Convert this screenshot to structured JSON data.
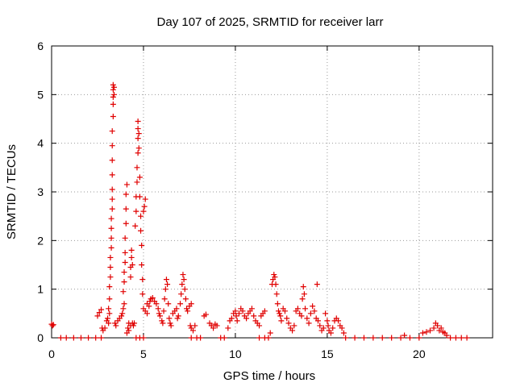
{
  "chart_data": {
    "type": "scatter",
    "title": "Day 107 of 2025, SRMTID for receiver larr",
    "xlabel": "GPS time / hours",
    "ylabel": "SRMTID / TECUs",
    "xlim": [
      0,
      24
    ],
    "ylim": [
      0,
      6
    ],
    "x_ticks": [
      0,
      5,
      10,
      15,
      20
    ],
    "y_ticks": [
      0,
      1,
      2,
      3,
      4,
      5,
      6
    ],
    "grid": true,
    "marker": "plus",
    "color": "#e00000",
    "series": [
      {
        "name": "SRMTID",
        "points": [
          [
            0.0,
            0.28
          ],
          [
            0.05,
            0.25
          ],
          [
            0.1,
            0.27
          ],
          [
            0.5,
            0.0
          ],
          [
            0.8,
            0.0
          ],
          [
            1.2,
            0.0
          ],
          [
            1.6,
            0.0
          ],
          [
            2.0,
            0.0
          ],
          [
            2.4,
            0.0
          ],
          [
            2.7,
            0.0
          ],
          [
            2.5,
            0.45
          ],
          [
            2.6,
            0.52
          ],
          [
            2.7,
            0.58
          ],
          [
            2.75,
            0.2
          ],
          [
            2.8,
            0.15
          ],
          [
            2.9,
            0.2
          ],
          [
            3.0,
            0.35
          ],
          [
            3.05,
            0.4
          ],
          [
            3.1,
            0.3
          ],
          [
            3.15,
            0.5
          ],
          [
            3.1,
            0.6
          ],
          [
            3.15,
            0.8
          ],
          [
            3.15,
            1.05
          ],
          [
            3.2,
            1.25
          ],
          [
            3.2,
            1.45
          ],
          [
            3.2,
            1.65
          ],
          [
            3.25,
            1.85
          ],
          [
            3.25,
            2.05
          ],
          [
            3.25,
            2.25
          ],
          [
            3.25,
            2.45
          ],
          [
            3.3,
            2.65
          ],
          [
            3.3,
            2.85
          ],
          [
            3.3,
            3.05
          ],
          [
            3.3,
            3.35
          ],
          [
            3.3,
            3.65
          ],
          [
            3.3,
            3.95
          ],
          [
            3.3,
            4.25
          ],
          [
            3.35,
            4.55
          ],
          [
            3.35,
            4.8
          ],
          [
            3.35,
            4.95
          ],
          [
            3.35,
            5.1
          ],
          [
            3.35,
            5.2
          ],
          [
            3.4,
            5.15
          ],
          [
            3.4,
            5.0
          ],
          [
            3.45,
            0.3
          ],
          [
            3.5,
            0.25
          ],
          [
            3.6,
            0.35
          ],
          [
            3.7,
            0.4
          ],
          [
            3.8,
            0.45
          ],
          [
            3.85,
            0.5
          ],
          [
            3.9,
            0.6
          ],
          [
            3.95,
            0.7
          ],
          [
            3.9,
            0.95
          ],
          [
            3.95,
            1.15
          ],
          [
            3.95,
            1.35
          ],
          [
            4.0,
            1.55
          ],
          [
            4.0,
            1.75
          ],
          [
            4.0,
            2.05
          ],
          [
            4.05,
            2.35
          ],
          [
            4.05,
            2.65
          ],
          [
            4.05,
            2.95
          ],
          [
            4.1,
            3.15
          ],
          [
            4.1,
            0.1
          ],
          [
            4.15,
            0.2
          ],
          [
            4.2,
            0.3
          ],
          [
            4.2,
            0.15
          ],
          [
            4.3,
            0.25
          ],
          [
            4.3,
            1.25
          ],
          [
            4.3,
            1.45
          ],
          [
            4.35,
            1.65
          ],
          [
            4.35,
            1.8
          ],
          [
            4.4,
            1.5
          ],
          [
            4.4,
            0.3
          ],
          [
            4.45,
            0.25
          ],
          [
            4.5,
            0.3
          ],
          [
            4.55,
            2.3
          ],
          [
            4.6,
            2.6
          ],
          [
            4.6,
            2.9
          ],
          [
            4.65,
            3.2
          ],
          [
            4.65,
            3.5
          ],
          [
            4.7,
            3.8
          ],
          [
            4.7,
            4.1
          ],
          [
            4.7,
            4.3
          ],
          [
            4.7,
            4.45
          ],
          [
            4.75,
            4.2
          ],
          [
            4.75,
            3.9
          ],
          [
            4.8,
            3.3
          ],
          [
            4.8,
            2.9
          ],
          [
            4.85,
            2.5
          ],
          [
            4.85,
            2.2
          ],
          [
            4.9,
            1.9
          ],
          [
            4.9,
            1.5
          ],
          [
            4.95,
            1.2
          ],
          [
            4.95,
            0.9
          ],
          [
            5.0,
            0.6
          ],
          [
            5.0,
            2.6
          ],
          [
            5.05,
            2.7
          ],
          [
            5.1,
            2.85
          ],
          [
            5.1,
            0.55
          ],
          [
            5.2,
            0.5
          ],
          [
            4.6,
            0.0
          ],
          [
            4.8,
            0.0
          ],
          [
            5.0,
            0.0
          ],
          [
            5.2,
            0.7
          ],
          [
            5.3,
            0.65
          ],
          [
            5.35,
            0.75
          ],
          [
            5.4,
            0.8
          ],
          [
            5.5,
            0.82
          ],
          [
            5.6,
            0.75
          ],
          [
            5.7,
            0.7
          ],
          [
            5.8,
            0.6
          ],
          [
            5.85,
            0.5
          ],
          [
            5.9,
            0.45
          ],
          [
            6.0,
            0.35
          ],
          [
            6.05,
            0.3
          ],
          [
            6.1,
            0.55
          ],
          [
            6.15,
            0.8
          ],
          [
            6.2,
            1.0
          ],
          [
            6.25,
            1.2
          ],
          [
            6.3,
            1.1
          ],
          [
            6.35,
            0.7
          ],
          [
            6.4,
            0.4
          ],
          [
            6.45,
            0.3
          ],
          [
            6.5,
            0.25
          ],
          [
            6.6,
            0.5
          ],
          [
            6.7,
            0.55
          ],
          [
            6.8,
            0.6
          ],
          [
            6.85,
            0.4
          ],
          [
            6.9,
            0.45
          ],
          [
            7.0,
            0.7
          ],
          [
            7.05,
            0.9
          ],
          [
            7.1,
            1.1
          ],
          [
            7.15,
            1.3
          ],
          [
            7.2,
            1.2
          ],
          [
            7.25,
            1.0
          ],
          [
            7.3,
            0.8
          ],
          [
            7.35,
            0.6
          ],
          [
            7.4,
            0.55
          ],
          [
            7.5,
            0.65
          ],
          [
            7.6,
            0.7
          ],
          [
            7.55,
            0.25
          ],
          [
            7.6,
            0.2
          ],
          [
            7.7,
            0.15
          ],
          [
            7.8,
            0.25
          ],
          [
            7.6,
            0.0
          ],
          [
            7.9,
            0.0
          ],
          [
            8.1,
            0.0
          ],
          [
            8.3,
            0.45
          ],
          [
            8.4,
            0.48
          ],
          [
            8.6,
            0.3
          ],
          [
            8.7,
            0.25
          ],
          [
            8.8,
            0.2
          ],
          [
            8.9,
            0.28
          ],
          [
            9.0,
            0.25
          ],
          [
            9.2,
            0.0
          ],
          [
            9.4,
            0.0
          ],
          [
            9.6,
            0.2
          ],
          [
            9.7,
            0.35
          ],
          [
            9.8,
            0.4
          ],
          [
            9.9,
            0.5
          ],
          [
            10.0,
            0.55
          ],
          [
            10.05,
            0.45
          ],
          [
            10.1,
            0.35
          ],
          [
            10.2,
            0.5
          ],
          [
            10.3,
            0.6
          ],
          [
            10.4,
            0.55
          ],
          [
            10.5,
            0.45
          ],
          [
            10.6,
            0.4
          ],
          [
            10.7,
            0.5
          ],
          [
            10.8,
            0.55
          ],
          [
            10.9,
            0.6
          ],
          [
            11.0,
            0.45
          ],
          [
            11.1,
            0.35
          ],
          [
            11.2,
            0.3
          ],
          [
            11.3,
            0.25
          ],
          [
            11.4,
            0.45
          ],
          [
            11.5,
            0.5
          ],
          [
            11.6,
            0.55
          ],
          [
            11.3,
            0.0
          ],
          [
            11.6,
            0.0
          ],
          [
            11.8,
            0.0
          ],
          [
            11.9,
            0.1
          ],
          [
            12.0,
            1.1
          ],
          [
            12.05,
            1.2
          ],
          [
            12.1,
            1.3
          ],
          [
            12.15,
            1.25
          ],
          [
            12.2,
            1.1
          ],
          [
            12.25,
            0.9
          ],
          [
            12.3,
            0.7
          ],
          [
            12.35,
            0.55
          ],
          [
            12.4,
            0.5
          ],
          [
            12.45,
            0.45
          ],
          [
            12.5,
            0.35
          ],
          [
            12.6,
            0.6
          ],
          [
            12.7,
            0.55
          ],
          [
            12.8,
            0.4
          ],
          [
            12.9,
            0.3
          ],
          [
            13.0,
            0.2
          ],
          [
            13.1,
            0.15
          ],
          [
            13.2,
            0.25
          ],
          [
            13.3,
            0.55
          ],
          [
            13.4,
            0.6
          ],
          [
            13.5,
            0.5
          ],
          [
            13.6,
            0.45
          ],
          [
            13.65,
            0.8
          ],
          [
            13.7,
            1.05
          ],
          [
            13.75,
            0.9
          ],
          [
            13.8,
            0.6
          ],
          [
            13.9,
            0.4
          ],
          [
            14.0,
            0.3
          ],
          [
            14.1,
            0.5
          ],
          [
            14.2,
            0.65
          ],
          [
            14.3,
            0.55
          ],
          [
            14.4,
            0.4
          ],
          [
            14.45,
            1.1
          ],
          [
            14.5,
            0.35
          ],
          [
            14.6,
            0.25
          ],
          [
            14.7,
            0.15
          ],
          [
            14.8,
            0.2
          ],
          [
            14.9,
            0.5
          ],
          [
            15.0,
            0.35
          ],
          [
            15.05,
            0.25
          ],
          [
            15.1,
            0.15
          ],
          [
            15.2,
            0.1
          ],
          [
            15.3,
            0.2
          ],
          [
            15.4,
            0.35
          ],
          [
            15.5,
            0.4
          ],
          [
            15.6,
            0.35
          ],
          [
            15.7,
            0.25
          ],
          [
            15.8,
            0.2
          ],
          [
            15.9,
            0.1
          ],
          [
            16.0,
            0.0
          ],
          [
            16.5,
            0.0
          ],
          [
            17.0,
            0.0
          ],
          [
            17.5,
            0.0
          ],
          [
            18.0,
            0.0
          ],
          [
            18.5,
            0.0
          ],
          [
            19.0,
            0.0
          ],
          [
            19.2,
            0.05
          ],
          [
            19.5,
            0.0
          ],
          [
            20.0,
            0.0
          ],
          [
            20.2,
            0.1
          ],
          [
            20.4,
            0.12
          ],
          [
            20.6,
            0.15
          ],
          [
            20.8,
            0.2
          ],
          [
            20.9,
            0.3
          ],
          [
            21.0,
            0.25
          ],
          [
            21.1,
            0.15
          ],
          [
            21.2,
            0.2
          ],
          [
            21.3,
            0.12
          ],
          [
            21.4,
            0.1
          ],
          [
            21.5,
            0.05
          ],
          [
            21.7,
            0.0
          ],
          [
            22.0,
            0.0
          ],
          [
            22.3,
            0.0
          ],
          [
            22.6,
            0.0
          ]
        ]
      }
    ]
  }
}
